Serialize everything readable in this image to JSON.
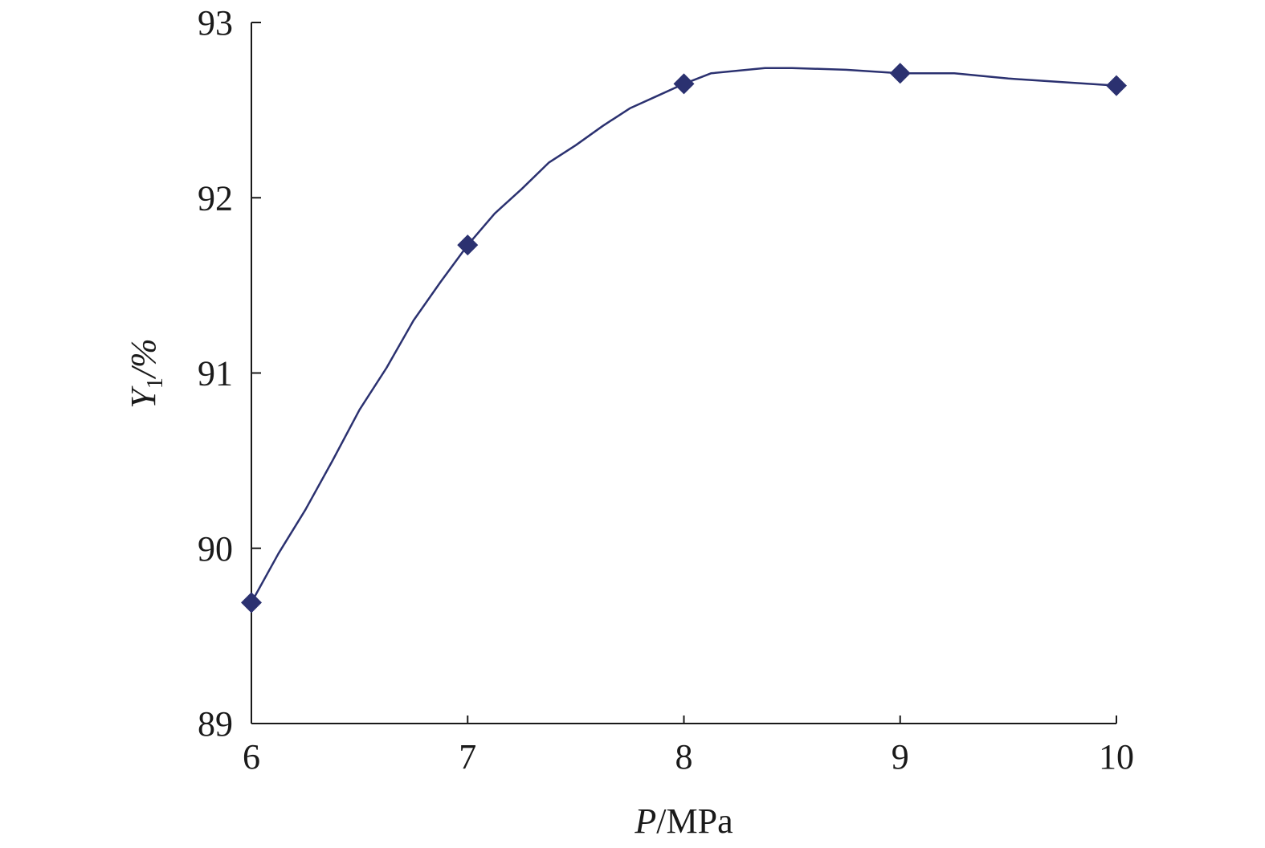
{
  "chart_data": {
    "type": "line",
    "xlabel": {
      "italic": "P",
      "rest": "/MPa"
    },
    "ylabel": {
      "italic": "Y",
      "sub": "1",
      "rest": "/%"
    },
    "xlim": [
      6,
      10
    ],
    "ylim": [
      89,
      93
    ],
    "xticks": [
      "6",
      "7",
      "8",
      "9",
      "10"
    ],
    "yticks": [
      "89",
      "90",
      "91",
      "92",
      "93"
    ],
    "grid": false,
    "legend": "none",
    "series_color": "#2b3170",
    "curve": {
      "x": [
        6.0,
        6.125,
        6.25,
        6.375,
        6.5,
        6.625,
        6.75,
        6.875,
        7.0,
        7.125,
        7.25,
        7.375,
        7.5,
        7.625,
        7.75,
        7.875,
        8.0,
        8.125,
        8.375,
        8.5,
        8.75,
        9.0,
        9.25,
        9.5,
        9.75,
        10.0
      ],
      "y": [
        89.69,
        89.97,
        90.22,
        90.5,
        90.79,
        91.03,
        91.3,
        91.52,
        91.73,
        91.91,
        92.05,
        92.2,
        92.3,
        92.41,
        92.51,
        92.58,
        92.65,
        92.71,
        92.74,
        92.74,
        92.73,
        92.71,
        92.71,
        92.68,
        92.66,
        92.64
      ]
    },
    "series": [
      {
        "x": [
          6,
          7,
          8,
          9,
          10
        ],
        "values": [
          89.69,
          91.73,
          92.65,
          92.71,
          92.64
        ]
      }
    ]
  }
}
